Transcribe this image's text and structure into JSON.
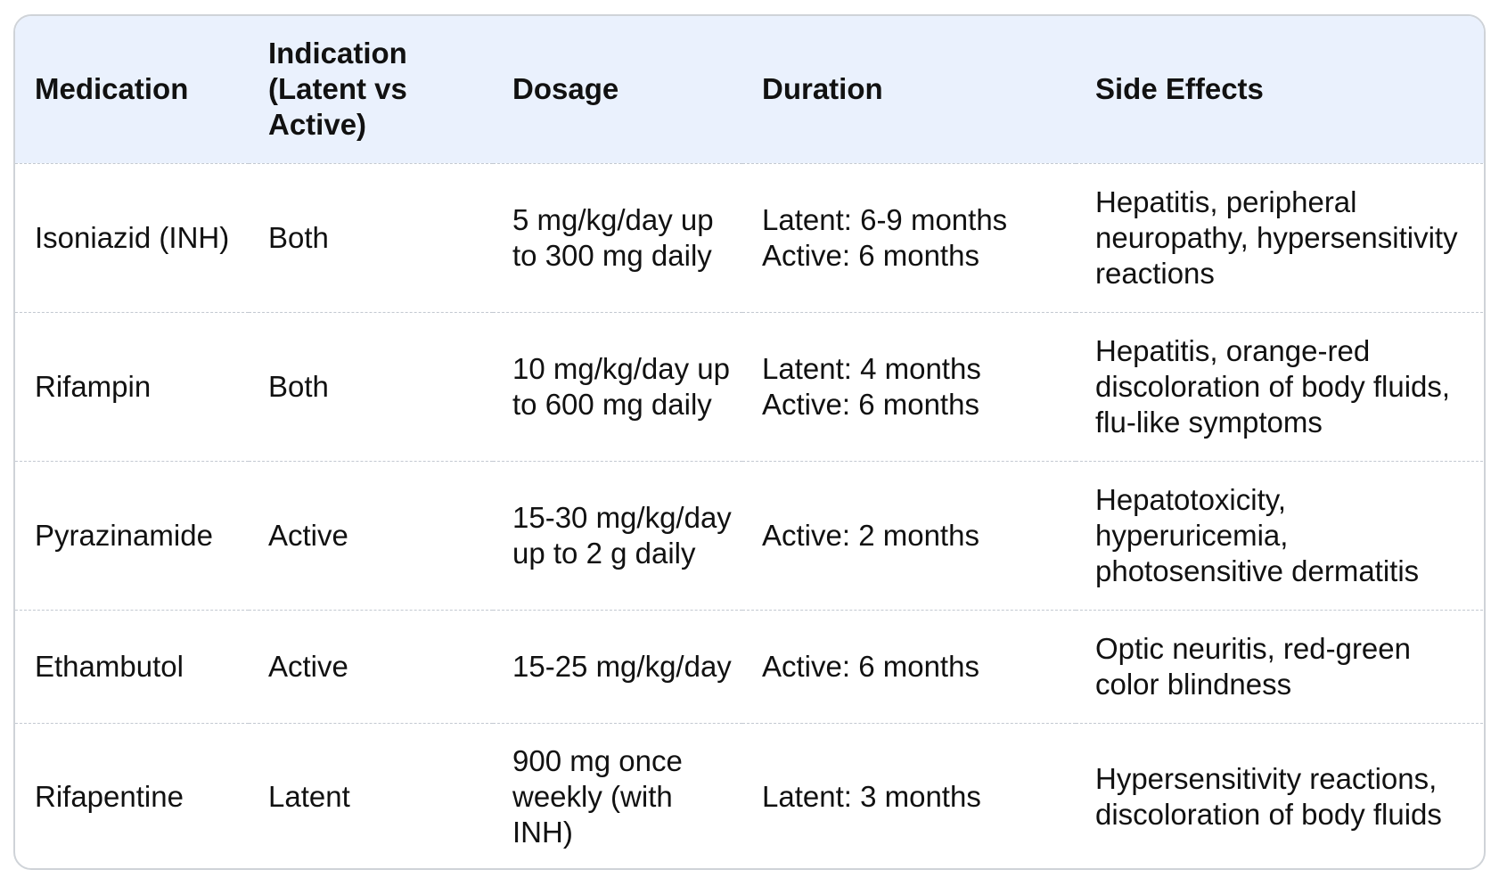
{
  "table": {
    "headers": {
      "medication": "Medication",
      "indication": "Indication (Latent vs Active)",
      "dosage": "Dosage",
      "duration": "Duration",
      "side_effects": "Side Effects"
    },
    "rows": [
      {
        "medication": "Isoniazid (INH)",
        "indication": "Both",
        "dosage": "5 mg/kg/day up to 300 mg daily",
        "duration_lines": [
          "Latent: 6-9 months",
          "Active: 6 months"
        ],
        "side_effects": "Hepatitis, peripheral neuropathy, hypersensitivity reactions"
      },
      {
        "medication": "Rifampin",
        "indication": "Both",
        "dosage": "10 mg/kg/day up to 600 mg daily",
        "duration_lines": [
          "Latent: 4 months",
          "Active: 6 months"
        ],
        "side_effects": "Hepatitis, orange-red discoloration of body fluids, flu-like symptoms"
      },
      {
        "medication": "Pyrazinamide",
        "indication": "Active",
        "dosage": "15-30 mg/kg/day up to 2 g daily",
        "duration_lines": [
          "Active: 2 months"
        ],
        "side_effects": "Hepatotoxicity, hyperuricemia, photosensitive dermatitis"
      },
      {
        "medication": "Ethambutol",
        "indication": "Active",
        "dosage": "15-25 mg/kg/day",
        "duration_lines": [
          "Active: 6 months"
        ],
        "side_effects": "Optic neuritis, red-green color blindness"
      },
      {
        "medication": "Rifapentine",
        "indication": "Latent",
        "dosage": "900 mg once weekly (with INH)",
        "duration_lines": [
          "Latent: 3 months"
        ],
        "side_effects": "Hypersensitivity reactions, discoloration of body fluids"
      }
    ]
  }
}
